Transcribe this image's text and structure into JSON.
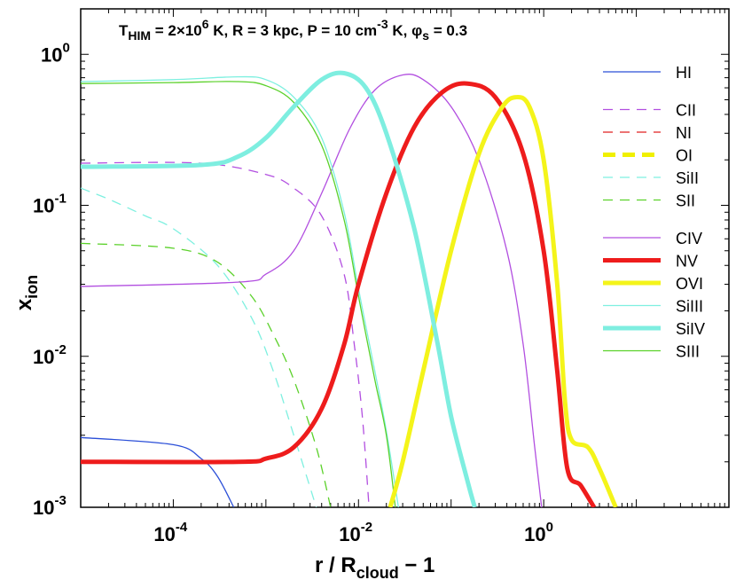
{
  "chart_data": {
    "type": "line",
    "title": {
      "T_main": "T",
      "T_sub": "HIM",
      "T_val": " = 2×10",
      "T_exp": "6",
      "T_rest": " K,  R = 3 kpc,  P = 10 cm",
      "P_exp": "-3",
      "P_rest": " K,  ",
      "phi": "φ",
      "phi_sub": "s",
      "phi_rest": " = 0.3"
    },
    "xlabel": {
      "main": "r / R",
      "sub": "cloud",
      "rest": " − 1"
    },
    "ylabel": {
      "main": "x",
      "sub": "ion"
    },
    "x_scale": "log",
    "y_scale": "log",
    "xlim": [
      1e-05,
      100
    ],
    "ylim": [
      0.001,
      2
    ],
    "x_ticks": [
      {
        "value": 0.0001,
        "base": "10",
        "exp": "-4"
      },
      {
        "value": 0.01,
        "base": "10",
        "exp": "-2"
      },
      {
        "value": 1,
        "base": "10",
        "exp": "0"
      }
    ],
    "y_ticks": [
      {
        "value": 0.001,
        "base": "10",
        "exp": "-3"
      },
      {
        "value": 0.01,
        "base": "10",
        "exp": "-2"
      },
      {
        "value": 0.1,
        "base": "10",
        "exp": "-1"
      },
      {
        "value": 1,
        "base": "10",
        "exp": "0"
      }
    ],
    "legend_position": "right",
    "series": [
      {
        "name": "HI",
        "color": "#2b4fd8",
        "style": "solid",
        "weight": "thin",
        "points": [
          [
            1e-05,
            0.0029
          ],
          [
            0.0001,
            0.0026
          ],
          [
            0.0002,
            0.0021
          ],
          [
            0.0003,
            0.0016
          ],
          [
            0.00045,
            0.001
          ]
        ]
      },
      {
        "name": "CII",
        "color": "#b24fe0",
        "style": "dashed",
        "weight": "thin",
        "points": [
          [
            1e-05,
            0.19
          ],
          [
            0.0002,
            0.19
          ],
          [
            0.001,
            0.16
          ],
          [
            0.002,
            0.13
          ],
          [
            0.004,
            0.085
          ],
          [
            0.007,
            0.035
          ],
          [
            0.009,
            0.012
          ],
          [
            0.011,
            0.004
          ],
          [
            0.013,
            0.001
          ]
        ]
      },
      {
        "name": "NI",
        "color": "#e02020",
        "style": "dashed",
        "weight": "thin",
        "points": []
      },
      {
        "name": "OI",
        "color": "#f0f000",
        "style": "dashed",
        "weight": "thick",
        "points": []
      },
      {
        "name": "SiII",
        "color": "#7ef0e0",
        "style": "dashed",
        "weight": "thin",
        "points": [
          [
            1e-05,
            0.13
          ],
          [
            2e-05,
            0.11
          ],
          [
            5e-05,
            0.085
          ],
          [
            0.0001,
            0.07
          ],
          [
            0.0003,
            0.04
          ],
          [
            0.0007,
            0.018
          ],
          [
            0.0012,
            0.008
          ],
          [
            0.002,
            0.003
          ],
          [
            0.0035,
            0.001
          ]
        ]
      },
      {
        "name": "SII",
        "color": "#5bd12a",
        "style": "dashed",
        "weight": "thin",
        "points": [
          [
            1e-05,
            0.056
          ],
          [
            0.0001,
            0.052
          ],
          [
            0.0003,
            0.042
          ],
          [
            0.0007,
            0.025
          ],
          [
            0.0012,
            0.014
          ],
          [
            0.002,
            0.007
          ],
          [
            0.0035,
            0.0025
          ],
          [
            0.005,
            0.001
          ]
        ]
      },
      {
        "name": "CIV",
        "color": "#b24fe0",
        "style": "solid",
        "weight": "thin",
        "points": [
          [
            1e-05,
            0.029
          ],
          [
            0.0005,
            0.031
          ],
          [
            0.001,
            0.035
          ],
          [
            0.002,
            0.05
          ],
          [
            0.004,
            0.12
          ],
          [
            0.008,
            0.32
          ],
          [
            0.015,
            0.58
          ],
          [
            0.03,
            0.73
          ],
          [
            0.05,
            0.68
          ],
          [
            0.1,
            0.45
          ],
          [
            0.2,
            0.2
          ],
          [
            0.4,
            0.05
          ],
          [
            0.6,
            0.012
          ],
          [
            0.8,
            0.0025
          ],
          [
            0.95,
            0.001
          ]
        ]
      },
      {
        "name": "NV",
        "color": "#ee1c1c",
        "style": "solid",
        "weight": "thick",
        "points": [
          [
            1e-05,
            0.002
          ],
          [
            0.0005,
            0.002
          ],
          [
            0.001,
            0.0021
          ],
          [
            0.002,
            0.0025
          ],
          [
            0.004,
            0.0045
          ],
          [
            0.007,
            0.012
          ],
          [
            0.01,
            0.03
          ],
          [
            0.02,
            0.12
          ],
          [
            0.04,
            0.33
          ],
          [
            0.08,
            0.56
          ],
          [
            0.15,
            0.64
          ],
          [
            0.3,
            0.52
          ],
          [
            0.6,
            0.22
          ],
          [
            1.0,
            0.05
          ],
          [
            1.4,
            0.008
          ],
          [
            1.8,
            0.0018
          ],
          [
            2.5,
            0.0014
          ],
          [
            3.5,
            0.001
          ]
        ]
      },
      {
        "name": "OVI",
        "color": "#f4f41a",
        "style": "solid",
        "weight": "thick",
        "points": [
          [
            0.022,
            0.001
          ],
          [
            0.03,
            0.002
          ],
          [
            0.05,
            0.008
          ],
          [
            0.1,
            0.05
          ],
          [
            0.2,
            0.22
          ],
          [
            0.35,
            0.44
          ],
          [
            0.5,
            0.52
          ],
          [
            0.7,
            0.45
          ],
          [
            1.0,
            0.2
          ],
          [
            1.4,
            0.03
          ],
          [
            1.7,
            0.005
          ],
          [
            2.0,
            0.0028
          ],
          [
            3.0,
            0.0025
          ],
          [
            4.0,
            0.0018
          ],
          [
            6.0,
            0.001
          ]
        ]
      },
      {
        "name": "SiIII",
        "color": "#7ef0e0",
        "style": "solid",
        "weight": "thin",
        "points": [
          [
            1e-05,
            0.66
          ],
          [
            0.0001,
            0.68
          ],
          [
            0.0005,
            0.71
          ],
          [
            0.001,
            0.68
          ],
          [
            0.002,
            0.52
          ],
          [
            0.004,
            0.28
          ],
          [
            0.007,
            0.09
          ],
          [
            0.01,
            0.028
          ],
          [
            0.015,
            0.008
          ],
          [
            0.02,
            0.0032
          ],
          [
            0.027,
            0.001
          ]
        ]
      },
      {
        "name": "SiIV",
        "color": "#7eeee0",
        "style": "solid",
        "weight": "thick",
        "points": [
          [
            1e-05,
            0.18
          ],
          [
            0.0002,
            0.185
          ],
          [
            0.0005,
            0.21
          ],
          [
            0.001,
            0.28
          ],
          [
            0.002,
            0.45
          ],
          [
            0.004,
            0.68
          ],
          [
            0.007,
            0.75
          ],
          [
            0.012,
            0.6
          ],
          [
            0.02,
            0.3
          ],
          [
            0.04,
            0.07
          ],
          [
            0.07,
            0.013
          ],
          [
            0.1,
            0.004
          ],
          [
            0.15,
            0.0015
          ],
          [
            0.18,
            0.001
          ]
        ]
      },
      {
        "name": "SIII",
        "color": "#5bd12a",
        "style": "solid",
        "weight": "thin",
        "points": [
          [
            1e-05,
            0.64
          ],
          [
            0.0001,
            0.65
          ],
          [
            0.0005,
            0.66
          ],
          [
            0.001,
            0.62
          ],
          [
            0.002,
            0.48
          ],
          [
            0.004,
            0.25
          ],
          [
            0.007,
            0.08
          ],
          [
            0.01,
            0.025
          ],
          [
            0.015,
            0.007
          ],
          [
            0.02,
            0.003
          ],
          [
            0.025,
            0.001
          ]
        ]
      }
    ],
    "legend_groups": [
      [
        "HI"
      ],
      [
        "CII",
        "NI",
        "OI",
        "SiII",
        "SII"
      ],
      [
        "CIV",
        "NV",
        "OVI",
        "SiIII",
        "SiIV",
        "SIII"
      ]
    ]
  }
}
